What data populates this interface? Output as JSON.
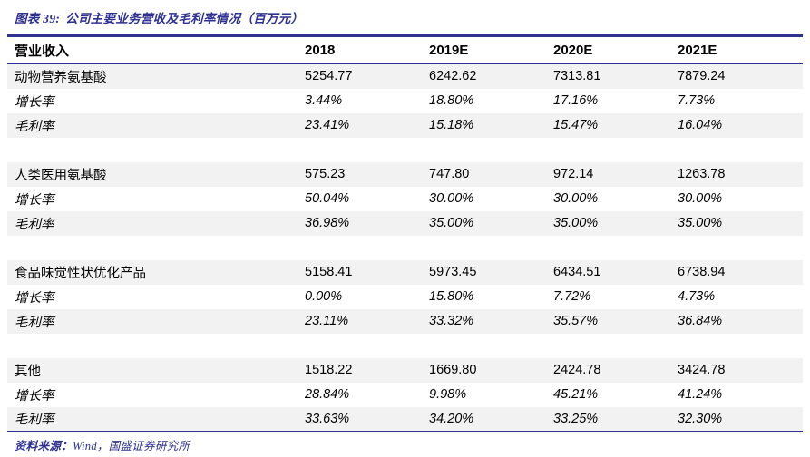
{
  "figure": {
    "label": "图表 39:",
    "title": "公司主要业务营收及毛利率情况（百万元）"
  },
  "chart_data": {
    "type": "table",
    "columns": [
      "营业收入",
      "2018",
      "2019E",
      "2020E",
      "2021E"
    ],
    "rows": [
      {
        "type": "data",
        "label": "动物营养氨基酸",
        "italic": false,
        "values": [
          "5254.77",
          "6242.62",
          "7313.81",
          "7879.24"
        ]
      },
      {
        "type": "data",
        "label": "增长率",
        "italic": true,
        "values": [
          "3.44%",
          "18.80%",
          "17.16%",
          "7.73%"
        ]
      },
      {
        "type": "data",
        "label": "毛利率",
        "italic": true,
        "values": [
          "23.41%",
          "15.18%",
          "15.47%",
          "16.04%"
        ]
      },
      {
        "type": "spacer"
      },
      {
        "type": "data",
        "label": "人类医用氨基酸",
        "italic": false,
        "values": [
          "575.23",
          "747.80",
          "972.14",
          "1263.78"
        ]
      },
      {
        "type": "data",
        "label": "增长率",
        "italic": true,
        "values": [
          "50.04%",
          "30.00%",
          "30.00%",
          "30.00%"
        ]
      },
      {
        "type": "data",
        "label": "毛利率",
        "italic": true,
        "values": [
          "36.98%",
          "35.00%",
          "35.00%",
          "35.00%"
        ]
      },
      {
        "type": "spacer"
      },
      {
        "type": "data",
        "label": "食品味觉性状优化产品",
        "italic": false,
        "values": [
          "5158.41",
          "5973.45",
          "6434.51",
          "6738.94"
        ]
      },
      {
        "type": "data",
        "label": "增长率",
        "italic": true,
        "values": [
          "0.00%",
          "15.80%",
          "7.72%",
          "4.73%"
        ]
      },
      {
        "type": "data",
        "label": "毛利率",
        "italic": true,
        "values": [
          "23.11%",
          "33.32%",
          "35.57%",
          "36.84%"
        ]
      },
      {
        "type": "spacer"
      },
      {
        "type": "data",
        "label": "其他",
        "italic": false,
        "values": [
          "1518.22",
          "1669.80",
          "2424.78",
          "3424.78"
        ]
      },
      {
        "type": "data",
        "label": "增长率",
        "italic": true,
        "values": [
          "28.84%",
          "9.98%",
          "45.21%",
          "41.24%"
        ]
      },
      {
        "type": "data",
        "label": "毛利率",
        "italic": true,
        "values": [
          "33.63%",
          "34.20%",
          "33.25%",
          "32.30%"
        ]
      }
    ]
  },
  "footer": {
    "source_label": "资料来源：",
    "source_text": "Wind，国盛证券研究所"
  },
  "colors": {
    "accent_blue": "#2E3192",
    "band_gray": "#F2F2F2"
  }
}
